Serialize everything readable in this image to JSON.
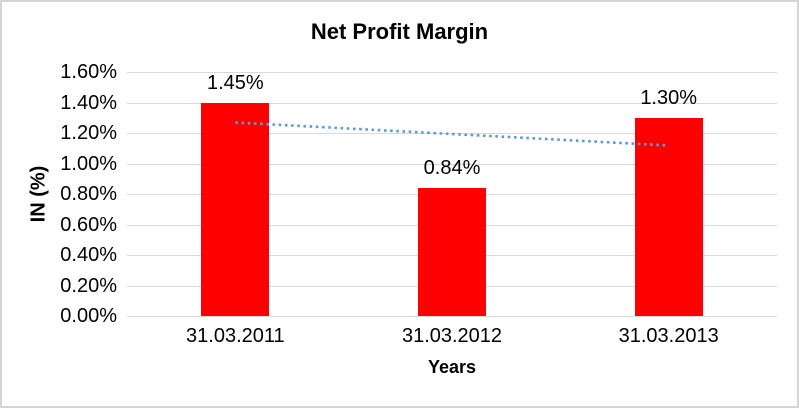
{
  "chart_data": {
    "type": "bar",
    "title": "Net Profit Margin",
    "xlabel": "Years",
    "ylabel": "IN (%)",
    "categories": [
      "31.03.2011",
      "31.03.2012",
      "31.03.2013"
    ],
    "values": [
      1.45,
      0.84,
      1.3
    ],
    "data_labels": [
      "1.45%",
      "0.84%",
      "1.30%"
    ],
    "ylim": [
      0,
      1.6
    ],
    "ytick_step": 0.2,
    "ytick_labels": [
      "0.00%",
      "0.20%",
      "0.40%",
      "0.60%",
      "0.80%",
      "1.00%",
      "1.20%",
      "1.40%",
      "1.60%"
    ],
    "grid": true,
    "legend": false,
    "colors": {
      "bar": "#FF0000",
      "trendline": "#5B9BD5",
      "gridline": "#D9D9D9",
      "text": "#000000",
      "frame_border": "#D5D5D5",
      "background": "#FFFFFF"
    },
    "trendline": {
      "type": "linear",
      "style": "dotted",
      "start_value": 1.27,
      "end_value": 1.12,
      "spans_categories": [
        "31.03.2011",
        "31.03.2013"
      ]
    }
  }
}
